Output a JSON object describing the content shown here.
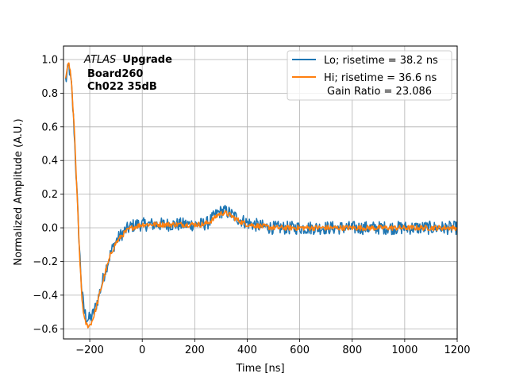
{
  "chart_data": {
    "type": "line",
    "xlabel": "Time [ns]",
    "ylabel": "Normalized Amplitude (A.U.)",
    "xlim": [
      -300,
      1200
    ],
    "ylim": [
      -0.66,
      1.08
    ],
    "xticks": [
      -200,
      0,
      200,
      400,
      600,
      800,
      1000,
      1200
    ],
    "yticks": [
      -0.6,
      -0.4,
      -0.2,
      0.0,
      0.2,
      0.4,
      0.6,
      0.8,
      1.0
    ],
    "grid": true,
    "legend_position": "top-right",
    "annotation": {
      "italic": "ATLAS",
      "bold": "Upgrade",
      "line2": "Board260",
      "line3": "Ch022 35dB"
    },
    "legend": {
      "entries": [
        "Lo; risetime = 38.2 ns",
        "Hi; risetime = 36.6 ns"
      ],
      "extra": "Gain Ratio = 23.086"
    },
    "series": [
      {
        "name": "Lo; risetime = 38.2 ns",
        "color": "#1f77b4",
        "noise": 0.025,
        "x": [
          -290,
          -280,
          -270,
          -260,
          -250,
          -240,
          -230,
          -220,
          -210,
          -200,
          -190,
          -180,
          -170,
          -160,
          -150,
          -140,
          -130,
          -120,
          -110,
          -100,
          -80,
          -60,
          -40,
          -20,
          0,
          20,
          40,
          60,
          80,
          100,
          150,
          200,
          230,
          250,
          270,
          290,
          310,
          330,
          350,
          370,
          400,
          450,
          500,
          600,
          700,
          800,
          900,
          1000,
          1100,
          1200
        ],
        "y": [
          0.88,
          0.97,
          0.85,
          0.6,
          0.25,
          -0.1,
          -0.38,
          -0.5,
          -0.54,
          -0.54,
          -0.52,
          -0.48,
          -0.43,
          -0.37,
          -0.31,
          -0.25,
          -0.2,
          -0.15,
          -0.11,
          -0.08,
          -0.04,
          -0.01,
          0.01,
          0.02,
          0.02,
          0.02,
          0.02,
          0.02,
          0.02,
          0.02,
          0.02,
          0.02,
          0.02,
          0.03,
          0.06,
          0.09,
          0.1,
          0.09,
          0.07,
          0.05,
          0.03,
          0.01,
          0.0,
          0.0,
          0.0,
          0.0,
          0.0,
          0.0,
          0.0,
          0.0
        ]
      },
      {
        "name": "Hi; risetime = 36.6 ns",
        "color": "#ff7f0e",
        "noise": 0.01,
        "x": [
          -290,
          -280,
          -270,
          -260,
          -250,
          -240,
          -230,
          -220,
          -210,
          -200,
          -190,
          -180,
          -170,
          -160,
          -150,
          -140,
          -130,
          -120,
          -110,
          -100,
          -80,
          -60,
          -40,
          -20,
          0,
          20,
          40,
          60,
          80,
          100,
          150,
          200,
          230,
          250,
          270,
          290,
          310,
          330,
          350,
          370,
          400,
          450,
          500,
          600,
          700,
          800,
          900,
          1000,
          1100,
          1200
        ],
        "y": [
          0.9,
          0.99,
          0.87,
          0.62,
          0.26,
          -0.12,
          -0.42,
          -0.55,
          -0.58,
          -0.58,
          -0.55,
          -0.5,
          -0.44,
          -0.38,
          -0.32,
          -0.26,
          -0.21,
          -0.16,
          -0.12,
          -0.09,
          -0.05,
          -0.02,
          0.0,
          0.01,
          0.02,
          0.02,
          0.02,
          0.02,
          0.02,
          0.02,
          0.02,
          0.02,
          0.02,
          0.03,
          0.05,
          0.08,
          0.09,
          0.08,
          0.06,
          0.04,
          0.02,
          0.01,
          0.0,
          0.0,
          0.0,
          0.0,
          0.0,
          0.0,
          0.0,
          0.0
        ]
      }
    ]
  }
}
